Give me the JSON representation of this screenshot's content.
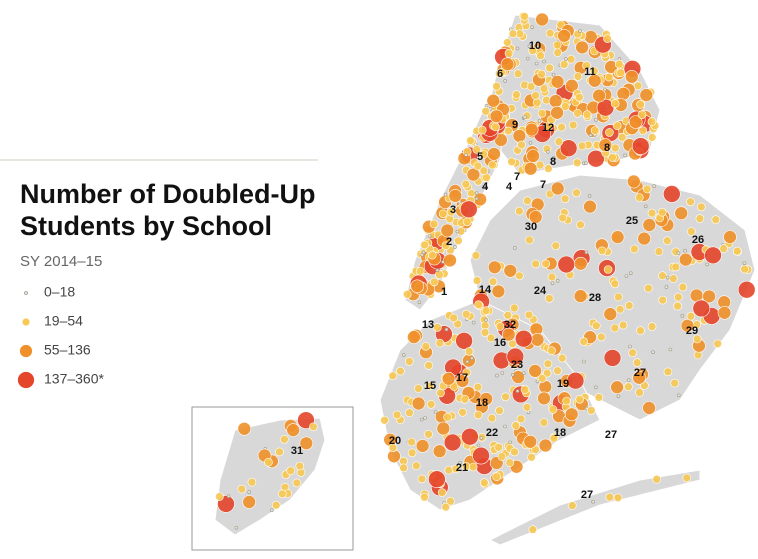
{
  "title_lines": [
    "Number of Doubled-Up",
    "Students by School"
  ],
  "subtitle": "SY 2014–15",
  "legend": [
    {
      "label": "0–18",
      "color": "#f3e9c9"
    },
    {
      "label": "19–54",
      "color": "#f7c852"
    },
    {
      "label": "55–136",
      "color": "#f0902a"
    },
    {
      "label": "137–360*",
      "color": "#e4452b"
    }
  ],
  "districts": [
    "10",
    "11",
    "6",
    "9",
    "12",
    "8",
    "8",
    "5",
    "7",
    "4",
    "4",
    "7",
    "3",
    "30",
    "25",
    "26",
    "2",
    "1",
    "14",
    "24",
    "28",
    "13",
    "32",
    "29",
    "16",
    "23",
    "27",
    "19",
    "15",
    "17",
    "18",
    "22",
    "18",
    "27",
    "20",
    "21",
    "27",
    "31"
  ]
}
